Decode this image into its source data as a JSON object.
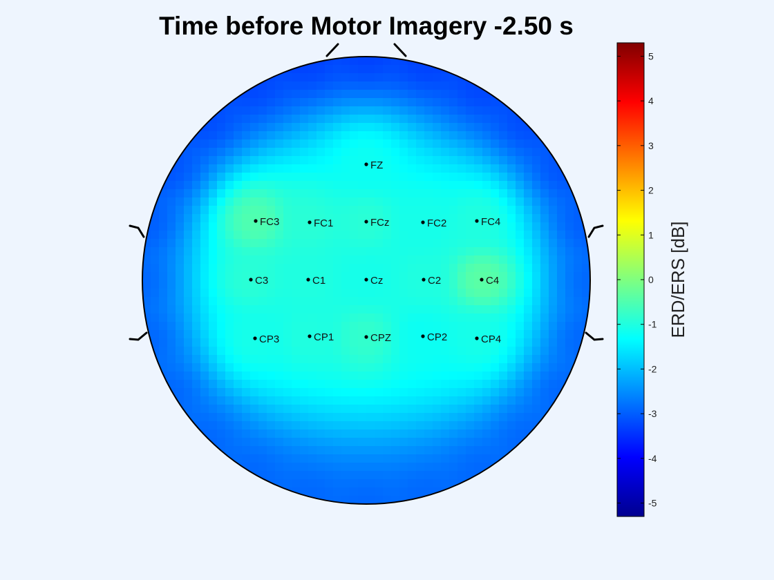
{
  "chart_data": {
    "type": "heatmap",
    "title": "Time before Motor Imagery -2.50 s",
    "colorbar": {
      "label": "ERD/ERS [dB]",
      "range": [
        -5.3,
        5.3
      ],
      "ticks": [
        "5",
        "4",
        "3",
        "2",
        "1",
        "0",
        "-1",
        "-2",
        "-3",
        "-4",
        "-5"
      ],
      "tick_values": [
        5,
        4,
        3,
        2,
        1,
        0,
        -1,
        -2,
        -3,
        -4,
        -5
      ],
      "colormap": "jet"
    },
    "electrodes": [
      {
        "label": "FZ",
        "value": -1.2
      },
      {
        "label": "FC3",
        "value": -0.5
      },
      {
        "label": "FC1",
        "value": -0.9
      },
      {
        "label": "FCz",
        "value": -0.9
      },
      {
        "label": "FC2",
        "value": -1.1
      },
      {
        "label": "FC4",
        "value": -1.0
      },
      {
        "label": "C3",
        "value": -0.9
      },
      {
        "label": "C1",
        "value": -1.0
      },
      {
        "label": "Cz",
        "value": -1.1
      },
      {
        "label": "C2",
        "value": -1.0
      },
      {
        "label": "C4",
        "value": -0.4
      },
      {
        "label": "CP3",
        "value": -1.1
      },
      {
        "label": "CP1",
        "value": -1.0
      },
      {
        "label": "CPZ",
        "value": -0.8
      },
      {
        "label": "CP2",
        "value": -1.2
      },
      {
        "label": "CP4",
        "value": -1.1
      }
    ],
    "boundary_value": -2.9,
    "colors": {
      "outline": "#000000",
      "background": "#eef5fe"
    }
  }
}
